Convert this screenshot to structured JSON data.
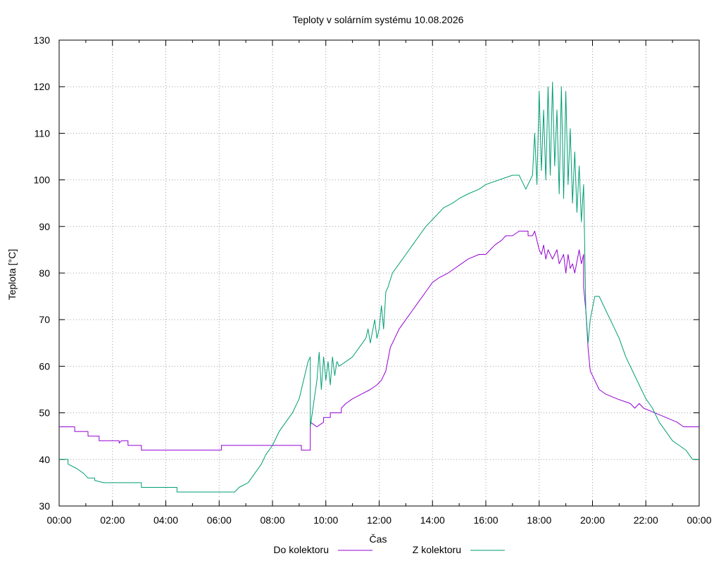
{
  "chart_data": {
    "type": "line",
    "title": "Teploty v solárním systému 10.08.2026",
    "xlabel": "Čas",
    "ylabel": "Teplota [°C]",
    "xlim": [
      "00:00",
      "24:00"
    ],
    "ylim": [
      30,
      130
    ],
    "yticks": [
      30,
      40,
      50,
      60,
      70,
      80,
      90,
      100,
      110,
      120,
      130
    ],
    "xtick_labels": [
      "00:00",
      "02:00",
      "04:00",
      "06:00",
      "08:00",
      "10:00",
      "12:00",
      "14:00",
      "16:00",
      "18:00",
      "20:00",
      "22:00",
      "00:00"
    ],
    "grid": true,
    "legend_position": "bottom",
    "series": [
      {
        "name": "Do kolektoru",
        "color": "#9400d3",
        "points": [
          [
            "00:00",
            47
          ],
          [
            "00:35",
            47
          ],
          [
            "00:35",
            46
          ],
          [
            "01:05",
            46
          ],
          [
            "01:05",
            45
          ],
          [
            "01:30",
            45
          ],
          [
            "01:30",
            44
          ],
          [
            "02:15",
            44
          ],
          [
            "02:15",
            43.5
          ],
          [
            "02:20",
            44
          ],
          [
            "02:35",
            44
          ],
          [
            "02:35",
            43
          ],
          [
            "03:05",
            43
          ],
          [
            "03:05",
            42
          ],
          [
            "06:05",
            42
          ],
          [
            "06:05",
            43
          ],
          [
            "09:05",
            43
          ],
          [
            "09:05",
            42
          ],
          [
            "09:25",
            42
          ],
          [
            "09:25",
            48
          ],
          [
            "09:40",
            47
          ],
          [
            "09:55",
            48
          ],
          [
            "09:55",
            49
          ],
          [
            "10:10",
            49
          ],
          [
            "10:10",
            50
          ],
          [
            "10:35",
            50
          ],
          [
            "10:35",
            51
          ],
          [
            "10:45",
            52
          ],
          [
            "11:00",
            53
          ],
          [
            "11:20",
            54
          ],
          [
            "11:40",
            55
          ],
          [
            "11:55",
            56
          ],
          [
            "12:05",
            57
          ],
          [
            "12:15",
            59
          ],
          [
            "12:25",
            64
          ],
          [
            "12:35",
            66
          ],
          [
            "12:45",
            68
          ],
          [
            "13:00",
            70
          ],
          [
            "13:15",
            72
          ],
          [
            "13:30",
            74
          ],
          [
            "13:45",
            76
          ],
          [
            "14:00",
            78
          ],
          [
            "14:15",
            79
          ],
          [
            "14:35",
            80
          ],
          [
            "14:50",
            81
          ],
          [
            "15:05",
            82
          ],
          [
            "15:20",
            83
          ],
          [
            "15:45",
            84
          ],
          [
            "16:00",
            84
          ],
          [
            "16:10",
            85
          ],
          [
            "16:20",
            86
          ],
          [
            "16:35",
            87
          ],
          [
            "16:45",
            88
          ],
          [
            "17:00",
            88
          ],
          [
            "17:15",
            89
          ],
          [
            "17:35",
            89
          ],
          [
            "17:35",
            88
          ],
          [
            "17:45",
            88
          ],
          [
            "17:50",
            89
          ],
          [
            "17:55",
            87
          ],
          [
            "18:00",
            85
          ],
          [
            "18:05",
            84
          ],
          [
            "18:10",
            86
          ],
          [
            "18:15",
            83
          ],
          [
            "18:20",
            85
          ],
          [
            "18:30",
            83
          ],
          [
            "18:40",
            85
          ],
          [
            "18:45",
            82
          ],
          [
            "18:55",
            84
          ],
          [
            "19:00",
            80
          ],
          [
            "19:05",
            84
          ],
          [
            "19:10",
            81
          ],
          [
            "19:15",
            82
          ],
          [
            "19:20",
            80
          ],
          [
            "19:30",
            85
          ],
          [
            "19:35",
            82
          ],
          [
            "19:40",
            84
          ],
          [
            "19:40",
            77
          ],
          [
            "19:45",
            72
          ],
          [
            "19:50",
            64
          ],
          [
            "19:55",
            59
          ],
          [
            "20:05",
            57
          ],
          [
            "20:15",
            55
          ],
          [
            "20:30",
            54
          ],
          [
            "20:55",
            53
          ],
          [
            "21:25",
            52
          ],
          [
            "21:35",
            51
          ],
          [
            "21:45",
            52
          ],
          [
            "21:55",
            51
          ],
          [
            "22:20",
            50
          ],
          [
            "22:45",
            49
          ],
          [
            "23:10",
            48
          ],
          [
            "23:25",
            47
          ],
          [
            "24:00",
            47
          ]
        ]
      },
      {
        "name": "Z kolektoru",
        "color": "#009e73",
        "points": [
          [
            "00:00",
            40
          ],
          [
            "00:20",
            40
          ],
          [
            "00:20",
            39
          ],
          [
            "00:40",
            38
          ],
          [
            "00:55",
            37
          ],
          [
            "01:05",
            36
          ],
          [
            "01:20",
            36
          ],
          [
            "01:20",
            35.5
          ],
          [
            "01:40",
            35
          ],
          [
            "03:05",
            35
          ],
          [
            "03:05",
            34
          ],
          [
            "04:25",
            34
          ],
          [
            "04:25",
            33
          ],
          [
            "06:35",
            33
          ],
          [
            "06:45",
            34
          ],
          [
            "07:05",
            35
          ],
          [
            "07:20",
            37
          ],
          [
            "07:35",
            39
          ],
          [
            "07:45",
            41
          ],
          [
            "08:00",
            43
          ],
          [
            "08:15",
            46
          ],
          [
            "08:30",
            48
          ],
          [
            "08:45",
            50
          ],
          [
            "09:00",
            53
          ],
          [
            "09:10",
            57
          ],
          [
            "09:20",
            61
          ],
          [
            "09:25",
            62
          ],
          [
            "09:25",
            47
          ],
          [
            "09:40",
            57
          ],
          [
            "09:45",
            63
          ],
          [
            "09:50",
            55
          ],
          [
            "09:55",
            62
          ],
          [
            "10:00",
            57
          ],
          [
            "10:05",
            61
          ],
          [
            "10:10",
            56
          ],
          [
            "10:15",
            62
          ],
          [
            "10:20",
            58
          ],
          [
            "10:25",
            61
          ],
          [
            "10:30",
            60
          ],
          [
            "10:45",
            61
          ],
          [
            "11:00",
            62
          ],
          [
            "11:15",
            64
          ],
          [
            "11:30",
            66
          ],
          [
            "11:35",
            68
          ],
          [
            "11:40",
            65
          ],
          [
            "11:50",
            70
          ],
          [
            "11:55",
            66
          ],
          [
            "12:00",
            68
          ],
          [
            "12:05",
            73
          ],
          [
            "12:10",
            68
          ],
          [
            "12:15",
            76
          ],
          [
            "12:20",
            77
          ],
          [
            "12:30",
            80
          ],
          [
            "12:45",
            82
          ],
          [
            "13:00",
            84
          ],
          [
            "13:15",
            86
          ],
          [
            "13:30",
            88
          ],
          [
            "13:45",
            90
          ],
          [
            "14:05",
            92
          ],
          [
            "14:25",
            94
          ],
          [
            "14:45",
            95
          ],
          [
            "15:00",
            96
          ],
          [
            "15:20",
            97
          ],
          [
            "15:45",
            98
          ],
          [
            "16:00",
            99
          ],
          [
            "16:30",
            100
          ],
          [
            "17:00",
            101
          ],
          [
            "17:15",
            101
          ],
          [
            "17:30",
            98
          ],
          [
            "17:45",
            101
          ],
          [
            "17:50",
            110
          ],
          [
            "17:55",
            99
          ],
          [
            "18:00",
            119
          ],
          [
            "18:05",
            102
          ],
          [
            "18:10",
            115
          ],
          [
            "18:15",
            100
          ],
          [
            "18:20",
            120
          ],
          [
            "18:25",
            101
          ],
          [
            "18:30",
            121
          ],
          [
            "18:35",
            103
          ],
          [
            "18:40",
            115
          ],
          [
            "18:45",
            97
          ],
          [
            "18:50",
            120
          ],
          [
            "18:55",
            96
          ],
          [
            "19:00",
            119
          ],
          [
            "19:05",
            99
          ],
          [
            "19:10",
            111
          ],
          [
            "19:15",
            95
          ],
          [
            "19:20",
            106
          ],
          [
            "19:25",
            93
          ],
          [
            "19:30",
            103
          ],
          [
            "19:35",
            91
          ],
          [
            "19:40",
            99
          ],
          [
            "19:45",
            72
          ],
          [
            "19:50",
            65
          ],
          [
            "19:55",
            70
          ],
          [
            "20:05",
            75
          ],
          [
            "20:15",
            75
          ],
          [
            "20:30",
            72
          ],
          [
            "20:45",
            69
          ],
          [
            "21:00",
            66
          ],
          [
            "21:15",
            62
          ],
          [
            "21:30",
            59
          ],
          [
            "21:45",
            56
          ],
          [
            "22:00",
            53
          ],
          [
            "22:15",
            51
          ],
          [
            "22:30",
            48
          ],
          [
            "22:45",
            46
          ],
          [
            "23:00",
            44
          ],
          [
            "23:15",
            43
          ],
          [
            "23:30",
            42
          ],
          [
            "23:45",
            40
          ],
          [
            "24:00",
            40
          ]
        ]
      }
    ]
  }
}
